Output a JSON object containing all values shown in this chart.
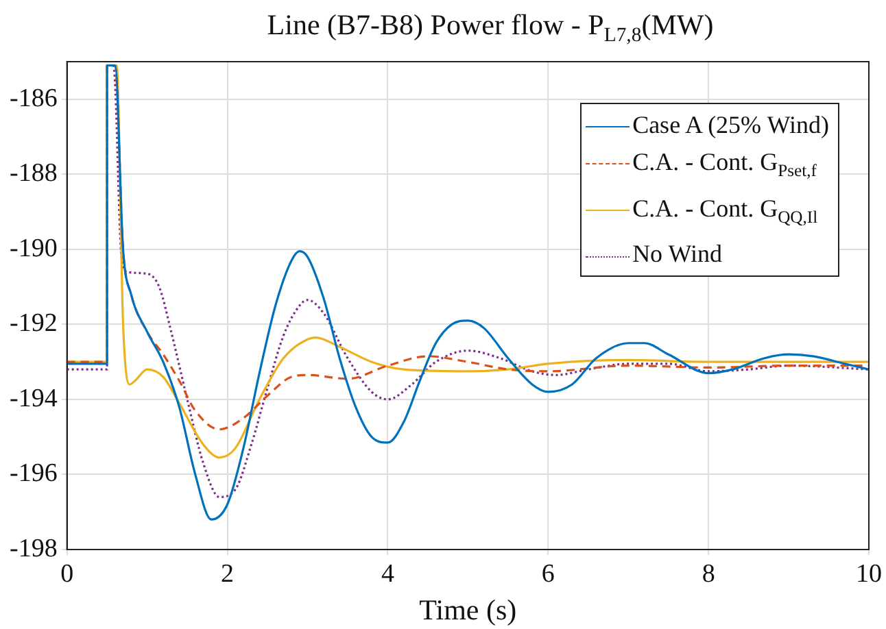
{
  "chart_data": {
    "type": "line",
    "title": "Line (B7-B8) Power flow - P$_{L7,8}$(MW)",
    "xlabel": "Time (s)",
    "xlim": [
      0,
      10
    ],
    "xticks": [
      0,
      2,
      4,
      6,
      8,
      10
    ],
    "ylim": [
      -198,
      -185
    ],
    "yticks": [
      -198,
      -196,
      -194,
      -192,
      -190,
      -188,
      -186
    ],
    "grid": true,
    "legend": "top right",
    "marker": "none",
    "series": [
      {
        "name": "Case A (25% Wind)",
        "color": "#0072bd",
        "line_style": "solid",
        "x": [
          0,
          0.5,
          0.5,
          0.6,
          0.7,
          0.8,
          1.0,
          1.2,
          1.4,
          1.6,
          1.8,
          2.0,
          2.2,
          2.4,
          2.6,
          2.8,
          2.9,
          3.0,
          3.2,
          3.4,
          3.6,
          3.8,
          4.0,
          4.2,
          4.4,
          4.6,
          4.8,
          5.0,
          5.2,
          5.5,
          5.8,
          6.0,
          6.3,
          6.6,
          7.0,
          7.2,
          7.5,
          8.0,
          8.3,
          8.7,
          9.0,
          9.3,
          9.7,
          10
        ],
        "values": [
          -193.05,
          -193.05,
          -185.1,
          -185.1,
          -190,
          -191.2,
          -192.2,
          -193.0,
          -194.2,
          -196.0,
          -197.2,
          -196.8,
          -195.3,
          -193.3,
          -191.5,
          -190.3,
          -190.05,
          -190.2,
          -191.3,
          -192.9,
          -194.2,
          -195.0,
          -195.15,
          -194.6,
          -193.5,
          -192.5,
          -192.0,
          -191.9,
          -192.1,
          -192.9,
          -193.6,
          -193.8,
          -193.6,
          -192.9,
          -192.5,
          -192.5,
          -192.8,
          -193.3,
          -193.2,
          -192.9,
          -192.8,
          -192.85,
          -193.05,
          -193.2
        ]
      },
      {
        "name": "C.A. - Cont. G$_{Pset,f}$",
        "color": "#d95319",
        "line_style": "dashed",
        "x": [
          0,
          0.5,
          0.5,
          0.6,
          0.7,
          0.8,
          1.0,
          1.2,
          1.4,
          1.6,
          1.9,
          2.2,
          2.5,
          2.8,
          3.0,
          3.5,
          4.0,
          4.5,
          5.0,
          5.5,
          6.0,
          7.0,
          8.0,
          9.0,
          10
        ],
        "values": [
          -193.0,
          -193.0,
          -185.1,
          -185.1,
          -190,
          -191.2,
          -192.2,
          -192.8,
          -193.5,
          -194.3,
          -194.8,
          -194.5,
          -193.9,
          -193.4,
          -193.35,
          -193.45,
          -193.1,
          -192.85,
          -193.0,
          -193.2,
          -193.25,
          -193.1,
          -193.15,
          -193.1,
          -193.1
        ]
      },
      {
        "name": "C.A. - Cont. G$_{QQ,Il}$",
        "color": "#edb120",
        "line_style": "solid",
        "x": [
          0,
          0.5,
          0.5,
          0.62,
          0.7,
          0.78,
          0.85,
          1.0,
          1.2,
          1.4,
          1.7,
          1.9,
          2.1,
          2.4,
          2.7,
          3.0,
          3.1,
          3.4,
          3.8,
          4.2,
          5.0,
          5.5,
          6.0,
          7.0,
          8.0,
          9.0,
          10
        ],
        "values": [
          -193.0,
          -193.0,
          -185.1,
          -185.1,
          -192.0,
          -193.6,
          -193.5,
          -193.2,
          -193.4,
          -194.1,
          -195.2,
          -195.55,
          -195.3,
          -194.0,
          -192.9,
          -192.4,
          -192.35,
          -192.6,
          -193.0,
          -193.2,
          -193.25,
          -193.2,
          -193.05,
          -192.95,
          -193.0,
          -193.0,
          -193.0
        ]
      },
      {
        "name": "No Wind",
        "color": "#7e2f8e",
        "line_style": "dotted",
        "x": [
          0,
          0.5,
          0.5,
          0.58,
          0.68,
          0.75,
          1.0,
          1.15,
          1.3,
          1.5,
          1.7,
          1.9,
          2.1,
          2.3,
          2.5,
          2.7,
          2.9,
          3.0,
          3.2,
          3.5,
          3.8,
          4.0,
          4.3,
          4.6,
          5.0,
          5.4,
          5.8,
          6.1,
          6.5,
          7.0,
          7.5,
          8.0,
          8.5,
          9.0,
          10
        ],
        "values": [
          -193.2,
          -193.2,
          -185.1,
          -185.1,
          -190.2,
          -190.6,
          -190.65,
          -191.0,
          -192.2,
          -194.0,
          -195.7,
          -196.6,
          -196.4,
          -195.2,
          -193.7,
          -192.3,
          -191.5,
          -191.35,
          -191.7,
          -192.9,
          -193.8,
          -194.0,
          -193.6,
          -193.0,
          -192.7,
          -192.9,
          -193.25,
          -193.35,
          -193.2,
          -193.05,
          -193.05,
          -193.25,
          -193.2,
          -193.1,
          -193.2
        ]
      }
    ]
  }
}
